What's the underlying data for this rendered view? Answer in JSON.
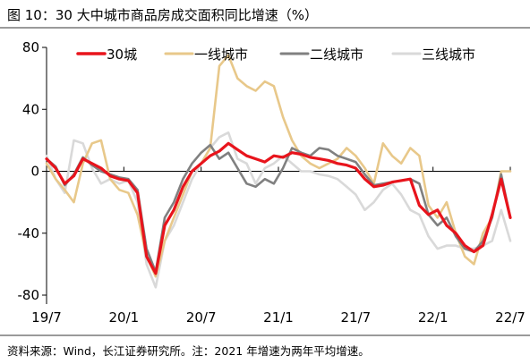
{
  "title": "图 10：30 大中城市商品房成交面积同比增速（%）",
  "source": "资料来源：Wind，长江证券研究所。注：2021 年增速为两年平均增速。",
  "chart_data": {
    "type": "line",
    "x_ticks": [
      "19/7",
      "20/1",
      "20/7",
      "21/1",
      "21/7",
      "22/1",
      "22/7"
    ],
    "y_ticks": [
      "80",
      "40",
      "0",
      "-40",
      "-80"
    ],
    "ylim": [
      -80,
      80
    ],
    "legend_position": "top",
    "series": [
      {
        "name": "30城",
        "color": "#e8141c",
        "values": [
          [
            0,
            8
          ],
          [
            1,
            2
          ],
          [
            2,
            -8
          ],
          [
            3,
            -3
          ],
          [
            4,
            8
          ],
          [
            5,
            5
          ],
          [
            6,
            2
          ],
          [
            7,
            -3
          ],
          [
            8,
            -5
          ],
          [
            9,
            -6
          ],
          [
            10,
            -14
          ],
          [
            11,
            -55
          ],
          [
            12,
            -66
          ],
          [
            13,
            -35
          ],
          [
            14,
            -25
          ],
          [
            15,
            -10
          ],
          [
            16,
            0
          ],
          [
            17,
            5
          ],
          [
            18,
            10
          ],
          [
            19,
            13
          ],
          [
            20,
            18
          ],
          [
            21,
            14
          ],
          [
            22,
            10
          ],
          [
            23,
            8
          ],
          [
            24,
            6
          ],
          [
            25,
            10
          ],
          [
            26,
            9
          ],
          [
            27,
            12
          ],
          [
            28,
            11
          ],
          [
            29,
            9
          ],
          [
            30,
            8
          ],
          [
            31,
            7
          ],
          [
            32,
            5
          ],
          [
            33,
            4
          ],
          [
            34,
            2
          ],
          [
            35,
            -5
          ],
          [
            36,
            -10
          ],
          [
            37,
            -9
          ],
          [
            38,
            -7
          ],
          [
            39,
            -6
          ],
          [
            40,
            -5
          ],
          [
            41,
            -22
          ],
          [
            42,
            -28
          ],
          [
            43,
            -25
          ],
          [
            44,
            -35
          ],
          [
            45,
            -40
          ],
          [
            46,
            -48
          ],
          [
            47,
            -52
          ],
          [
            48,
            -48
          ],
          [
            49,
            -28
          ],
          [
            50,
            -5
          ],
          [
            51,
            -30
          ]
        ]
      },
      {
        "name": "一线城市",
        "color": "#e8c88a",
        "values": [
          [
            0,
            5
          ],
          [
            1,
            -5
          ],
          [
            2,
            -12
          ],
          [
            3,
            -20
          ],
          [
            4,
            5
          ],
          [
            5,
            18
          ],
          [
            6,
            20
          ],
          [
            7,
            -5
          ],
          [
            8,
            -12
          ],
          [
            9,
            -14
          ],
          [
            10,
            -28
          ],
          [
            11,
            -55
          ],
          [
            12,
            -68
          ],
          [
            13,
            -45
          ],
          [
            14,
            -30
          ],
          [
            15,
            -15
          ],
          [
            16,
            0
          ],
          [
            17,
            5
          ],
          [
            18,
            15
          ],
          [
            19,
            68
          ],
          [
            20,
            75
          ],
          [
            21,
            60
          ],
          [
            22,
            55
          ],
          [
            23,
            52
          ],
          [
            24,
            58
          ],
          [
            25,
            55
          ],
          [
            26,
            35
          ],
          [
            27,
            20
          ],
          [
            28,
            10
          ],
          [
            29,
            5
          ],
          [
            30,
            2
          ],
          [
            31,
            5
          ],
          [
            32,
            8
          ],
          [
            33,
            15
          ],
          [
            34,
            10
          ],
          [
            35,
            2
          ],
          [
            36,
            -8
          ],
          [
            37,
            18
          ],
          [
            38,
            10
          ],
          [
            39,
            5
          ],
          [
            40,
            15
          ],
          [
            41,
            10
          ],
          [
            42,
            -22
          ],
          [
            43,
            -30
          ],
          [
            44,
            -20
          ],
          [
            45,
            -40
          ],
          [
            46,
            -55
          ],
          [
            47,
            -60
          ],
          [
            48,
            -40
          ],
          [
            49,
            -30
          ],
          [
            50,
            0
          ],
          [
            51,
            0
          ]
        ]
      },
      {
        "name": "二线城市",
        "color": "#808080",
        "values": [
          [
            0,
            8
          ],
          [
            1,
            3
          ],
          [
            2,
            -9
          ],
          [
            3,
            -2
          ],
          [
            4,
            9
          ],
          [
            5,
            4
          ],
          [
            6,
            0
          ],
          [
            7,
            -2
          ],
          [
            8,
            -4
          ],
          [
            9,
            -5
          ],
          [
            10,
            -12
          ],
          [
            11,
            -50
          ],
          [
            12,
            -65
          ],
          [
            13,
            -30
          ],
          [
            14,
            -20
          ],
          [
            15,
            -5
          ],
          [
            16,
            5
          ],
          [
            17,
            12
          ],
          [
            18,
            17
          ],
          [
            19,
            8
          ],
          [
            20,
            12
          ],
          [
            21,
            2
          ],
          [
            22,
            -8
          ],
          [
            23,
            -10
          ],
          [
            24,
            -5
          ],
          [
            25,
            -8
          ],
          [
            26,
            2
          ],
          [
            27,
            15
          ],
          [
            28,
            12
          ],
          [
            29,
            10
          ],
          [
            30,
            15
          ],
          [
            31,
            14
          ],
          [
            32,
            10
          ],
          [
            33,
            8
          ],
          [
            34,
            6
          ],
          [
            35,
            -2
          ],
          [
            36,
            -9
          ],
          [
            37,
            -8
          ],
          [
            38,
            -7
          ],
          [
            39,
            -6
          ],
          [
            40,
            -5
          ],
          [
            41,
            -8
          ],
          [
            42,
            -28
          ],
          [
            43,
            -35
          ],
          [
            44,
            -30
          ],
          [
            45,
            -42
          ],
          [
            46,
            -50
          ],
          [
            47,
            -52
          ],
          [
            48,
            -45
          ],
          [
            49,
            -30
          ],
          [
            50,
            -2
          ],
          [
            51,
            -30
          ]
        ]
      },
      {
        "name": "三线城市",
        "color": "#d9d9d9",
        "values": [
          [
            0,
            10
          ],
          [
            1,
            -5
          ],
          [
            2,
            -14
          ],
          [
            3,
            20
          ],
          [
            4,
            18
          ],
          [
            5,
            2
          ],
          [
            6,
            -8
          ],
          [
            7,
            -5
          ],
          [
            8,
            -8
          ],
          [
            9,
            -6
          ],
          [
            10,
            -20
          ],
          [
            11,
            -60
          ],
          [
            12,
            -75
          ],
          [
            13,
            -45
          ],
          [
            14,
            -35
          ],
          [
            15,
            -20
          ],
          [
            16,
            -5
          ],
          [
            17,
            5
          ],
          [
            18,
            15
          ],
          [
            19,
            22
          ],
          [
            20,
            25
          ],
          [
            21,
            8
          ],
          [
            22,
            5
          ],
          [
            23,
            -8
          ],
          [
            24,
            2
          ],
          [
            25,
            5
          ],
          [
            26,
            10
          ],
          [
            27,
            5
          ],
          [
            28,
            0
          ],
          [
            29,
            0
          ],
          [
            30,
            -2
          ],
          [
            31,
            -3
          ],
          [
            32,
            -5
          ],
          [
            33,
            -10
          ],
          [
            34,
            -15
          ],
          [
            35,
            -25
          ],
          [
            36,
            -20
          ],
          [
            37,
            -12
          ],
          [
            38,
            -8
          ],
          [
            39,
            -15
          ],
          [
            40,
            -25
          ],
          [
            41,
            -28
          ],
          [
            42,
            -42
          ],
          [
            43,
            -50
          ],
          [
            44,
            -48
          ],
          [
            45,
            -48
          ],
          [
            46,
            -50
          ],
          [
            47,
            -50
          ],
          [
            48,
            -48
          ],
          [
            49,
            -45
          ],
          [
            50,
            -25
          ],
          [
            51,
            -45
          ]
        ]
      }
    ]
  }
}
